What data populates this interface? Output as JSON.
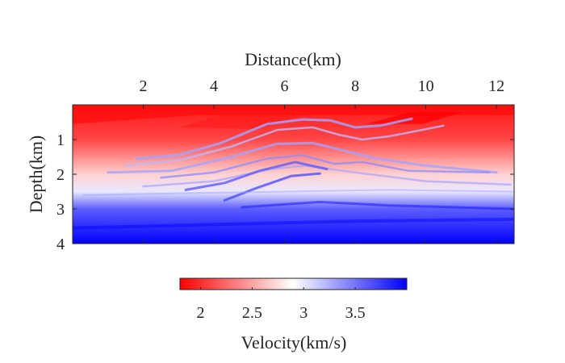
{
  "chart_data": {
    "type": "heatmap",
    "title": "",
    "xlabel": "Distance(km)",
    "ylabel": "Depth(km)",
    "x_axis_position": "top",
    "xlim": [
      0,
      12.5
    ],
    "ylim": [
      4,
      0
    ],
    "x_ticks": [
      2,
      4,
      6,
      8,
      10,
      12
    ],
    "y_ticks": [
      1,
      2,
      3,
      4
    ],
    "x_tick_labels": [
      "2",
      "4",
      "6",
      "8",
      "10",
      "12"
    ],
    "y_tick_labels": [
      "1",
      "2",
      "3",
      "4"
    ],
    "grid": false,
    "colormap": {
      "name": "red-white-blue",
      "low_color": "#ff0000",
      "mid_color": "#ffffff",
      "high_color": "#0000ff"
    },
    "colorbar": {
      "label": "Velocity(km/s)",
      "range": [
        1.8,
        4.0
      ],
      "ticks": [
        2,
        2.5,
        3,
        3.5
      ],
      "tick_labels": [
        "2",
        "2.5",
        "3",
        "3.5"
      ],
      "orientation": "horizontal",
      "placement": "bottom"
    },
    "velocity_layers_by_depth": [
      {
        "depth": 0.0,
        "velocity": 1.9
      },
      {
        "depth": 1.0,
        "velocity": 2.1
      },
      {
        "depth": 2.0,
        "velocity": 2.7
      },
      {
        "depth": 2.5,
        "velocity": 3.0
      },
      {
        "depth": 3.0,
        "velocity": 3.6
      },
      {
        "depth": 4.0,
        "velocity": 4.0
      }
    ]
  }
}
